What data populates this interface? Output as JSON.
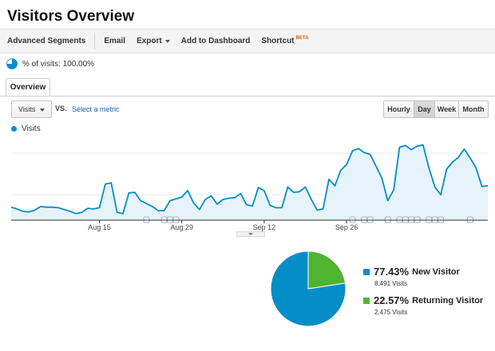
{
  "page": {
    "title": "Visitors Overview"
  },
  "toolbar": {
    "advanced_segments": "Advanced Segments",
    "email": "Email",
    "export": "Export",
    "add_to_dashboard": "Add to Dashboard",
    "shortcut": "Shortcut",
    "shortcut_badge": "BETA"
  },
  "segment": {
    "label": "% of visits: 100.00%",
    "fraction": 1.0
  },
  "tabs": {
    "overview": "Overview"
  },
  "controls": {
    "metric": "Visits",
    "vs": "VS.",
    "select_metric": "Select a metric",
    "granularity": [
      "Hourly",
      "Day",
      "Week",
      "Month"
    ],
    "granularity_selected": "Day"
  },
  "colors": {
    "primary": "#058dc7",
    "secondary": "#50b432",
    "area_fill": "#e6f3fa"
  },
  "chart_data": {
    "type": "area",
    "legend": "Visits",
    "x_tick_labels": [
      "Aug 15",
      "Aug 29",
      "Sep 12",
      "Sep 26"
    ],
    "x_tick_indices": [
      15,
      29,
      43,
      57
    ],
    "values": [
      22,
      19,
      15,
      14,
      17,
      23,
      22,
      22,
      21,
      18,
      15,
      11,
      13,
      20,
      19,
      21,
      61,
      63,
      13,
      11,
      46,
      47,
      33,
      28,
      23,
      16,
      16,
      33,
      36,
      39,
      50,
      29,
      18,
      35,
      41,
      27,
      35,
      37,
      38,
      45,
      26,
      24,
      55,
      50,
      25,
      21,
      21,
      56,
      47,
      48,
      56,
      35,
      17,
      19,
      69,
      58,
      84,
      94,
      117,
      121,
      114,
      111,
      91,
      71,
      33,
      51,
      123,
      126,
      119,
      125,
      127,
      88,
      56,
      43,
      86,
      98,
      106,
      120,
      105,
      88,
      57,
      58
    ],
    "ylim": [
      0,
      140
    ],
    "annotation_indices": [
      23,
      26,
      27,
      28,
      58,
      60,
      61,
      64,
      66,
      67,
      68,
      69,
      71,
      72,
      73,
      78
    ],
    "grid": "horizontal"
  },
  "pie_data": {
    "type": "pie",
    "slices": [
      {
        "percent": "77.43%",
        "value": 77.43,
        "label": "New Visitor",
        "count": "8,491 Visits",
        "color": "#058dc7"
      },
      {
        "percent": "22.57%",
        "value": 22.57,
        "label": "Returning Visitor",
        "count": "2,475 Visits",
        "color": "#50b432"
      }
    ]
  }
}
